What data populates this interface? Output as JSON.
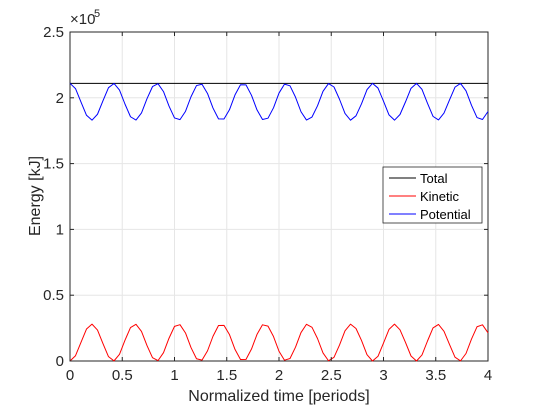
{
  "chart_data": {
    "type": "line",
    "title": "",
    "xlabel": "Normalized time [periods]",
    "ylabel": "Energy [kJ]",
    "y_exponent_label": "×10",
    "y_exponent": "5",
    "xlim": [
      0,
      4
    ],
    "ylim": [
      0,
      250000
    ],
    "grid": true,
    "legend_position": "right",
    "x_ticks": [
      0,
      0.5,
      1,
      1.5,
      2,
      2.5,
      3,
      3.5,
      4
    ],
    "x_tick_labels": [
      "0",
      "0.5",
      "1",
      "1.5",
      "2",
      "2.5",
      "3",
      "3.5",
      "4"
    ],
    "y_ticks": [
      0,
      50000,
      100000,
      150000,
      200000,
      250000
    ],
    "y_tick_labels": [
      "0",
      "0.5",
      "1",
      "1.5",
      "2",
      "2.5"
    ],
    "x": [
      0,
      0.0526,
      0.1053,
      0.1579,
      0.2105,
      0.2632,
      0.3158,
      0.3684,
      0.4211,
      0.4737,
      0.5263,
      0.5789,
      0.6316,
      0.6842,
      0.7368,
      0.7895,
      0.8421,
      0.8947,
      0.9474,
      1.0,
      1.0526,
      1.1053,
      1.1579,
      1.2105,
      1.2632,
      1.3158,
      1.3684,
      1.4211,
      1.4737,
      1.5263,
      1.5789,
      1.6316,
      1.6842,
      1.7368,
      1.7895,
      1.8421,
      1.8947,
      1.9474,
      2.0,
      2.0526,
      2.1053,
      2.1579,
      2.2105,
      2.2632,
      2.3158,
      2.3684,
      2.4211,
      2.4737,
      2.5263,
      2.5789,
      2.6316,
      2.6842,
      2.7368,
      2.7895,
      2.8421,
      2.8947,
      2.9474,
      3.0,
      3.0526,
      3.1053,
      3.1579,
      3.2105,
      3.2632,
      3.3158,
      3.3684,
      3.4211,
      3.4737,
      3.5263,
      3.5789,
      3.6316,
      3.6842,
      3.7368,
      3.7895,
      3.8421,
      3.8947,
      3.9474,
      4.0
    ],
    "series": [
      {
        "name": "Total",
        "color": "#000000",
        "values": [
          211000,
          211000,
          211000,
          211000,
          211000,
          211000,
          211000,
          211000,
          211000,
          211000,
          211000,
          211000,
          211000,
          211000,
          211000,
          211000,
          211000,
          211000,
          211000,
          211000,
          211000,
          211000,
          211000,
          211000,
          211000,
          211000,
          211000,
          211000,
          211000,
          211000,
          211000,
          211000,
          211000,
          211000,
          211000,
          211000,
          211000,
          211000,
          211000,
          211000,
          211000,
          211000,
          211000,
          211000,
          211000,
          211000,
          211000,
          211000,
          211000,
          211000,
          211000,
          211000,
          211000,
          211000,
          211000,
          211000,
          211000,
          211000,
          211000,
          211000,
          211000,
          211000,
          211000,
          211000,
          211000,
          211000,
          211000,
          211000,
          211000,
          211000,
          211000,
          211000,
          211000,
          211000,
          211000,
          211000,
          211000
        ]
      },
      {
        "name": "Kinetic",
        "color": "#ff0000",
        "values": [
          0,
          4000,
          14200,
          24300,
          28000,
          23500,
          13200,
          3300,
          100,
          5100,
          15800,
          25400,
          27900,
          22500,
          11700,
          2500,
          300,
          6300,
          17300,
          26300,
          27600,
          21300,
          10200,
          1700,
          700,
          7700,
          18800,
          27000,
          27100,
          20000,
          8800,
          1100,
          1200,
          9100,
          20200,
          27500,
          26500,
          18600,
          7400,
          600,
          1900,
          10500,
          21600,
          27900,
          25600,
          17100,
          6100,
          200,
          2800,
          12100,
          22900,
          28000,
          24700,
          15600,
          4800,
          0,
          3600,
          13600,
          24000,
          28000,
          23700,
          14100,
          3800,
          0,
          4600,
          15200,
          25100,
          27800,
          22600,
          12600,
          2900,
          100,
          5700,
          16700,
          26000,
          27500,
          21400
        ]
      },
      {
        "name": "Potential",
        "color": "#0000ff",
        "values": [
          211000,
          207000,
          196800,
          186700,
          183000,
          187500,
          197800,
          207700,
          210900,
          205900,
          195200,
          185600,
          183100,
          188500,
          199300,
          208500,
          210700,
          204700,
          193700,
          184700,
          183400,
          189700,
          200800,
          209300,
          210300,
          203300,
          192200,
          184000,
          183900,
          191000,
          202200,
          209900,
          209800,
          201900,
          190800,
          183500,
          184500,
          192400,
          203600,
          210400,
          209100,
          200500,
          189400,
          183100,
          185400,
          193900,
          204900,
          210800,
          208200,
          198900,
          188100,
          183000,
          186300,
          195400,
          206200,
          211000,
          207400,
          197400,
          187000,
          183000,
          187300,
          196900,
          207200,
          211000,
          206400,
          195800,
          185900,
          183200,
          188400,
          198400,
          208100,
          210900,
          205300,
          194300,
          185000,
          183500,
          189600
        ]
      }
    ]
  }
}
